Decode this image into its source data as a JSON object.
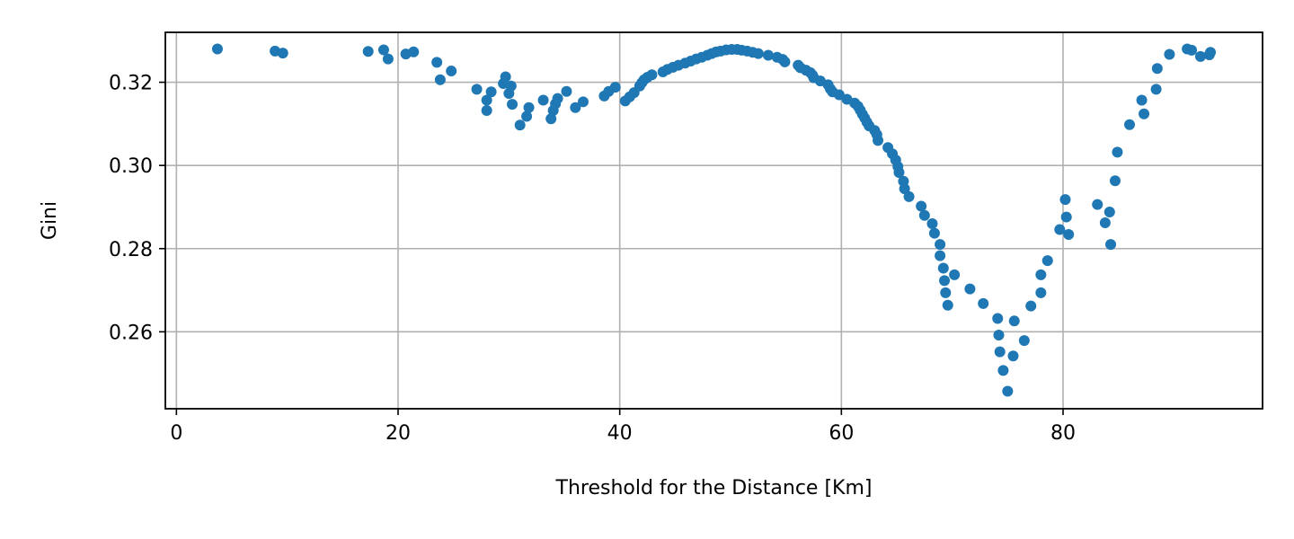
{
  "chart_data": {
    "type": "scatter",
    "title": "",
    "xlabel": "Threshold for the Distance [Km]",
    "ylabel": "Gini",
    "xlim": [
      -1,
      98
    ],
    "ylim": [
      0.2415,
      0.332
    ],
    "xticks": [
      0,
      20,
      40,
      60,
      80
    ],
    "yticks": [
      0.26,
      0.28,
      0.3,
      0.32
    ],
    "ytick_labels": [
      "0.26",
      "0.28",
      "0.30",
      "0.32"
    ],
    "grid": true,
    "legend": "none",
    "marker_color": "#1f77b4",
    "points": [
      [
        3.7,
        0.328
      ],
      [
        8.9,
        0.3275
      ],
      [
        9.6,
        0.327
      ],
      [
        17.3,
        0.3274
      ],
      [
        18.7,
        0.3278
      ],
      [
        19.1,
        0.3256
      ],
      [
        20.7,
        0.3268
      ],
      [
        21.4,
        0.3273
      ],
      [
        23.5,
        0.3248
      ],
      [
        23.8,
        0.3206
      ],
      [
        24.8,
        0.3227
      ],
      [
        27.1,
        0.3183
      ],
      [
        28.0,
        0.3157
      ],
      [
        28.0,
        0.3132
      ],
      [
        28.4,
        0.3177
      ],
      [
        29.5,
        0.3197
      ],
      [
        29.7,
        0.3213
      ],
      [
        30.0,
        0.3173
      ],
      [
        30.2,
        0.3191
      ],
      [
        30.3,
        0.3147
      ],
      [
        31.0,
        0.3097
      ],
      [
        31.6,
        0.3118
      ],
      [
        31.8,
        0.3139
      ],
      [
        33.1,
        0.3157
      ],
      [
        33.8,
        0.3112
      ],
      [
        34.0,
        0.3132
      ],
      [
        34.2,
        0.3148
      ],
      [
        34.4,
        0.3161
      ],
      [
        35.2,
        0.3178
      ],
      [
        36.0,
        0.3139
      ],
      [
        36.7,
        0.3153
      ],
      [
        38.6,
        0.3167
      ],
      [
        39.0,
        0.3178
      ],
      [
        39.6,
        0.3188
      ],
      [
        40.5,
        0.3155
      ],
      [
        40.9,
        0.3165
      ],
      [
        41.3,
        0.3175
      ],
      [
        41.8,
        0.3191
      ],
      [
        42.0,
        0.3199
      ],
      [
        42.2,
        0.3206
      ],
      [
        42.5,
        0.3212
      ],
      [
        42.9,
        0.3218
      ],
      [
        43.9,
        0.3225
      ],
      [
        44.3,
        0.3231
      ],
      [
        44.8,
        0.3236
      ],
      [
        45.3,
        0.3241
      ],
      [
        45.9,
        0.3246
      ],
      [
        46.4,
        0.3251
      ],
      [
        46.9,
        0.3256
      ],
      [
        47.4,
        0.326
      ],
      [
        47.9,
        0.3265
      ],
      [
        48.3,
        0.3269
      ],
      [
        48.7,
        0.3273
      ],
      [
        49.1,
        0.3275
      ],
      [
        49.6,
        0.3278
      ],
      [
        50.1,
        0.3279
      ],
      [
        50.6,
        0.3279
      ],
      [
        51.0,
        0.3277
      ],
      [
        51.5,
        0.3275
      ],
      [
        52.0,
        0.3272
      ],
      [
        52.5,
        0.3269
      ],
      [
        53.4,
        0.3265
      ],
      [
        54.2,
        0.326
      ],
      [
        54.7,
        0.3255
      ],
      [
        54.9,
        0.3249
      ],
      [
        56.1,
        0.3241
      ],
      [
        56.3,
        0.3235
      ],
      [
        56.8,
        0.3229
      ],
      [
        57.2,
        0.3223
      ],
      [
        57.4,
        0.3217
      ],
      [
        57.5,
        0.3211
      ],
      [
        58.1,
        0.3203
      ],
      [
        58.8,
        0.3194
      ],
      [
        59.0,
        0.3184
      ],
      [
        59.2,
        0.3177
      ],
      [
        59.8,
        0.317
      ],
      [
        60.5,
        0.3159
      ],
      [
        61.2,
        0.315
      ],
      [
        61.5,
        0.3142
      ],
      [
        61.7,
        0.3133
      ],
      [
        61.9,
        0.3123
      ],
      [
        62.1,
        0.3114
      ],
      [
        62.3,
        0.3104
      ],
      [
        62.5,
        0.3095
      ],
      [
        63.0,
        0.3084
      ],
      [
        63.2,
        0.3074
      ],
      [
        63.3,
        0.306
      ],
      [
        64.2,
        0.3043
      ],
      [
        64.6,
        0.3028
      ],
      [
        64.9,
        0.3013
      ],
      [
        65.1,
        0.2997
      ],
      [
        65.2,
        0.2983
      ],
      [
        65.6,
        0.2962
      ],
      [
        65.7,
        0.2944
      ],
      [
        66.1,
        0.2925
      ],
      [
        67.2,
        0.2902
      ],
      [
        67.5,
        0.288
      ],
      [
        68.2,
        0.286
      ],
      [
        68.4,
        0.2837
      ],
      [
        68.9,
        0.281
      ],
      [
        68.9,
        0.2783
      ],
      [
        69.2,
        0.2753
      ],
      [
        69.3,
        0.2723
      ],
      [
        69.4,
        0.2694
      ],
      [
        69.6,
        0.2664
      ],
      [
        70.2,
        0.2737
      ],
      [
        71.6,
        0.2703
      ],
      [
        72.8,
        0.2668
      ],
      [
        74.1,
        0.2632
      ],
      [
        74.2,
        0.2592
      ],
      [
        74.3,
        0.2552
      ],
      [
        74.6,
        0.2507
      ],
      [
        75.0,
        0.2457
      ],
      [
        75.5,
        0.2542
      ],
      [
        75.6,
        0.2626
      ],
      [
        76.5,
        0.2579
      ],
      [
        77.1,
        0.2662
      ],
      [
        78.0,
        0.2694
      ],
      [
        78.0,
        0.2737
      ],
      [
        78.6,
        0.2771
      ],
      [
        79.7,
        0.2846
      ],
      [
        80.2,
        0.2918
      ],
      [
        80.3,
        0.2876
      ],
      [
        80.5,
        0.2834
      ],
      [
        83.1,
        0.2906
      ],
      [
        83.8,
        0.2862
      ],
      [
        84.2,
        0.2888
      ],
      [
        84.3,
        0.281
      ],
      [
        84.7,
        0.2963
      ],
      [
        84.9,
        0.3032
      ],
      [
        86.0,
        0.3098
      ],
      [
        87.1,
        0.3157
      ],
      [
        87.3,
        0.3124
      ],
      [
        88.4,
        0.3183
      ],
      [
        88.5,
        0.3233
      ],
      [
        89.6,
        0.3267
      ],
      [
        91.2,
        0.328
      ],
      [
        91.6,
        0.3277
      ],
      [
        92.4,
        0.3262
      ],
      [
        93.2,
        0.3266
      ],
      [
        93.3,
        0.3272
      ]
    ]
  }
}
